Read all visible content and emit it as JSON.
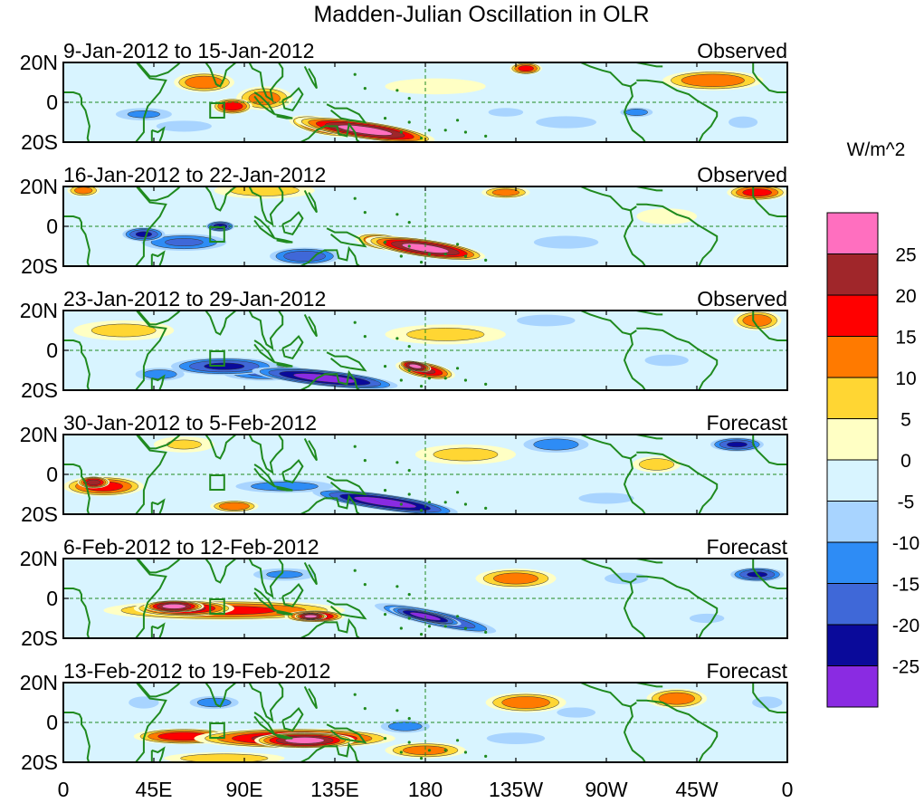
{
  "chart_data": {
    "type": "heatmap",
    "title": "Madden-Julian Oscillation in OLR",
    "units": "W/m^2",
    "xlabel": "",
    "ylabel": "",
    "x_ticks": [
      "0",
      "45E",
      "90E",
      "135E",
      "180",
      "135W",
      "90W",
      "45W",
      "0"
    ],
    "y_ticks": [
      "20N",
      "0",
      "20S"
    ],
    "colorbar": {
      "labels": [
        "25",
        "20",
        "15",
        "10",
        "5",
        "0",
        "-5",
        "-10",
        "-15",
        "-20",
        "-25"
      ],
      "colors": [
        "#ff6fbf",
        "#a0262a",
        "#ff0000",
        "#ff7a00",
        "#ffd633",
        "#ffffc4",
        "#d8f4ff",
        "#a8d4ff",
        "#2e8cf5",
        "#3f68d8",
        "#0a0a9a",
        "#8a2be2"
      ]
    },
    "panels": [
      {
        "period": "9-Jan-2012 to 15-Jan-2012",
        "status": "Observed",
        "anomalies": [
          {
            "lon": 150,
            "lat": -14,
            "rx": 35,
            "ry": 4.5,
            "v": 27,
            "rot": 8
          },
          {
            "lon": 130,
            "lat": -12,
            "rx": 18,
            "ry": 4.5,
            "v": 19,
            "rot": 10
          },
          {
            "lon": 70,
            "lat": 10,
            "rx": 15,
            "ry": 5,
            "v": 14,
            "rot": 0
          },
          {
            "lon": 84,
            "lat": -2,
            "rx": 10,
            "ry": 4,
            "v": 18,
            "rot": 0
          },
          {
            "lon": 100,
            "lat": 2,
            "rx": 14,
            "ry": 6,
            "v": 12,
            "rot": 0
          },
          {
            "lon": 230,
            "lat": 17,
            "rx": 8,
            "ry": 3,
            "v": 17,
            "rot": 0
          },
          {
            "lon": 323,
            "lat": 11,
            "rx": 25,
            "ry": 5,
            "v": 14,
            "rot": 0
          },
          {
            "lon": 185,
            "lat": 8,
            "rx": 25,
            "ry": 4,
            "v": 4,
            "rot": 0
          },
          {
            "lon": 40,
            "lat": -6,
            "rx": 18,
            "ry": 4,
            "v": -10,
            "rot": 0
          },
          {
            "lon": 60,
            "lat": -12,
            "rx": 20,
            "ry": 4,
            "v": -7,
            "rot": 0
          },
          {
            "lon": 250,
            "lat": -10,
            "rx": 20,
            "ry": 4,
            "v": -9,
            "rot": 0
          },
          {
            "lon": 285,
            "lat": -5,
            "rx": 10,
            "ry": 3,
            "v": -12,
            "rot": 0
          },
          {
            "lon": 220,
            "lat": -5,
            "rx": 12,
            "ry": 3,
            "v": -8,
            "rot": 0
          },
          {
            "lon": 170,
            "lat": 14,
            "rx": 25,
            "ry": 4,
            "v": -4,
            "rot": 0
          },
          {
            "lon": 338,
            "lat": -10,
            "rx": 10,
            "ry": 4,
            "v": -8,
            "rot": 0
          }
        ]
      },
      {
        "period": "16-Jan-2012 to 22-Jan-2012",
        "status": "Observed",
        "anomalies": [
          {
            "lon": 180,
            "lat": -11,
            "rx": 30,
            "ry": 4.5,
            "v": 27,
            "rot": 8
          },
          {
            "lon": 160,
            "lat": -8,
            "rx": 15,
            "ry": 4,
            "v": 18,
            "rot": 8
          },
          {
            "lon": 60,
            "lat": -8,
            "rx": 25,
            "ry": 5,
            "v": -15,
            "rot": 0
          },
          {
            "lon": 40,
            "lat": -4,
            "rx": 12,
            "ry": 4,
            "v": -20,
            "rot": 0
          },
          {
            "lon": 120,
            "lat": -15,
            "rx": 20,
            "ry": 5,
            "v": -18,
            "rot": 0
          },
          {
            "lon": 78,
            "lat": 0,
            "rx": 8,
            "ry": 3,
            "v": -22,
            "rot": 0
          },
          {
            "lon": 345,
            "lat": 17,
            "rx": 15,
            "ry": 4,
            "v": 17,
            "rot": 0
          },
          {
            "lon": 220,
            "lat": 17,
            "rx": 12,
            "ry": 3,
            "v": 12,
            "rot": 0
          },
          {
            "lon": 10,
            "lat": 18,
            "rx": 8,
            "ry": 3,
            "v": 12,
            "rot": 0
          },
          {
            "lon": 100,
            "lat": 18,
            "rx": 25,
            "ry": 4,
            "v": 7,
            "rot": 0
          },
          {
            "lon": 250,
            "lat": -8,
            "rx": 25,
            "ry": 5,
            "v": -6,
            "rot": 0
          },
          {
            "lon": 300,
            "lat": 5,
            "rx": 15,
            "ry": 4,
            "v": 4,
            "rot": 0
          }
        ]
      },
      {
        "period": "23-Jan-2012 to 29-Jan-2012",
        "status": "Observed",
        "anomalies": [
          {
            "lon": 130,
            "lat": -14,
            "rx": 40,
            "ry": 4.5,
            "v": -27,
            "rot": 6
          },
          {
            "lon": 80,
            "lat": -8,
            "rx": 30,
            "ry": 5,
            "v": -20,
            "rot": 0
          },
          {
            "lon": 100,
            "lat": -11,
            "rx": 25,
            "ry": 5,
            "v": -15,
            "rot": 0
          },
          {
            "lon": 48,
            "lat": -12,
            "rx": 15,
            "ry": 4,
            "v": -12,
            "rot": 0
          },
          {
            "lon": 180,
            "lat": -10,
            "rx": 15,
            "ry": 4,
            "v": 20,
            "rot": 10
          },
          {
            "lon": 175,
            "lat": -8,
            "rx": 8,
            "ry": 2.5,
            "v": 27,
            "rot": 10
          },
          {
            "lon": 190,
            "lat": 8,
            "rx": 30,
            "ry": 5,
            "v": 6,
            "rot": 0
          },
          {
            "lon": 345,
            "lat": 15,
            "rx": 12,
            "ry": 5,
            "v": 13,
            "rot": 0
          },
          {
            "lon": 240,
            "lat": 15,
            "rx": 20,
            "ry": 4,
            "v": -8,
            "rot": 0
          },
          {
            "lon": 300,
            "lat": -5,
            "rx": 15,
            "ry": 4,
            "v": -8,
            "rot": 0
          },
          {
            "lon": 30,
            "lat": 10,
            "rx": 25,
            "ry": 5,
            "v": 6,
            "rot": 0
          }
        ]
      },
      {
        "period": "30-Jan-2012 to 5-Feb-2012",
        "status": "Forecast",
        "anomalies": [
          {
            "lon": 160,
            "lat": -14,
            "rx": 40,
            "ry": 4.5,
            "v": -27,
            "rot": 8
          },
          {
            "lon": 110,
            "lat": -6,
            "rx": 30,
            "ry": 4,
            "v": -12,
            "rot": 0
          },
          {
            "lon": 20,
            "lat": -6,
            "rx": 20,
            "ry": 5,
            "v": 17,
            "rot": 0
          },
          {
            "lon": 15,
            "lat": -4,
            "rx": 8,
            "ry": 3,
            "v": 22,
            "rot": 0
          },
          {
            "lon": 85,
            "lat": -16,
            "rx": 12,
            "ry": 3,
            "v": 14,
            "rot": 0
          },
          {
            "lon": 335,
            "lat": 15,
            "rx": 15,
            "ry": 4,
            "v": -20,
            "rot": 0
          },
          {
            "lon": 245,
            "lat": 15,
            "rx": 20,
            "ry": 5,
            "v": -12,
            "rot": 0
          },
          {
            "lon": 295,
            "lat": 5,
            "rx": 12,
            "ry": 4,
            "v": 8,
            "rot": 0
          },
          {
            "lon": 200,
            "lat": 10,
            "rx": 25,
            "ry": 5,
            "v": 6,
            "rot": 0
          },
          {
            "lon": 60,
            "lat": 15,
            "rx": 15,
            "ry": 4,
            "v": 5,
            "rot": 0
          },
          {
            "lon": 270,
            "lat": -12,
            "rx": 20,
            "ry": 4,
            "v": -7,
            "rot": 0
          }
        ]
      },
      {
        "period": "6-Feb-2012 to 12-Feb-2012",
        "status": "Forecast",
        "anomalies": [
          {
            "lon": 80,
            "lat": -6,
            "rx": 60,
            "ry": 5,
            "v": 16,
            "rot": 0
          },
          {
            "lon": 60,
            "lat": -5,
            "rx": 25,
            "ry": 4,
            "v": 22,
            "rot": 0
          },
          {
            "lon": 55,
            "lat": -4,
            "rx": 15,
            "ry": 3,
            "v": 27,
            "rot": 0
          },
          {
            "lon": 125,
            "lat": -9,
            "rx": 15,
            "ry": 3,
            "v": 22,
            "rot": 0
          },
          {
            "lon": 123,
            "lat": -9,
            "rx": 8,
            "ry": 2,
            "v": 27,
            "rot": 0
          },
          {
            "lon": 185,
            "lat": -10,
            "rx": 35,
            "ry": 4.5,
            "v": -20,
            "rot": 12
          },
          {
            "lon": 180,
            "lat": -9,
            "rx": 20,
            "ry": 3,
            "v": -27,
            "rot": 12
          },
          {
            "lon": 345,
            "lat": 12,
            "rx": 15,
            "ry": 4,
            "v": -20,
            "rot": 0
          },
          {
            "lon": 225,
            "lat": 10,
            "rx": 20,
            "ry": 5,
            "v": 12,
            "rot": 0
          },
          {
            "lon": 110,
            "lat": 12,
            "rx": 20,
            "ry": 4,
            "v": -10,
            "rot": 0
          },
          {
            "lon": 280,
            "lat": 10,
            "rx": 15,
            "ry": 4,
            "v": -8,
            "rot": 0
          },
          {
            "lon": 320,
            "lat": -10,
            "rx": 15,
            "ry": 4,
            "v": -5,
            "rot": 0
          }
        ]
      },
      {
        "period": "13-Feb-2012 to 19-Feb-2012",
        "status": "Forecast",
        "anomalies": [
          {
            "lon": 115,
            "lat": -8,
            "rx": 50,
            "ry": 5,
            "v": 22,
            "rot": 0
          },
          {
            "lon": 120,
            "lat": -9,
            "rx": 25,
            "ry": 4,
            "v": 27,
            "rot": 0
          },
          {
            "lon": 60,
            "lat": -7,
            "rx": 25,
            "ry": 4,
            "v": 18,
            "rot": 0
          },
          {
            "lon": 180,
            "lat": -14,
            "rx": 20,
            "ry": 4,
            "v": 12,
            "rot": 0
          },
          {
            "lon": 230,
            "lat": 10,
            "rx": 20,
            "ry": 5,
            "v": 13,
            "rot": 0
          },
          {
            "lon": 305,
            "lat": 12,
            "rx": 15,
            "ry": 5,
            "v": 13,
            "rot": 0
          },
          {
            "lon": 75,
            "lat": 10,
            "rx": 15,
            "ry": 4,
            "v": -12,
            "rot": 0
          },
          {
            "lon": 40,
            "lat": 10,
            "rx": 10,
            "ry": 4,
            "v": -9,
            "rot": 0
          },
          {
            "lon": 170,
            "lat": -2,
            "rx": 15,
            "ry": 4,
            "v": -12,
            "rot": 0
          },
          {
            "lon": 225,
            "lat": -8,
            "rx": 20,
            "ry": 4,
            "v": -8,
            "rot": 0
          },
          {
            "lon": 255,
            "lat": 5,
            "rx": 15,
            "ry": 4,
            "v": -6,
            "rot": 0
          },
          {
            "lon": 350,
            "lat": 10,
            "rx": 10,
            "ry": 4,
            "v": -9,
            "rot": 0
          },
          {
            "lon": 80,
            "lat": -18,
            "rx": 30,
            "ry": 3,
            "v": 8,
            "rot": 0
          }
        ]
      }
    ]
  }
}
